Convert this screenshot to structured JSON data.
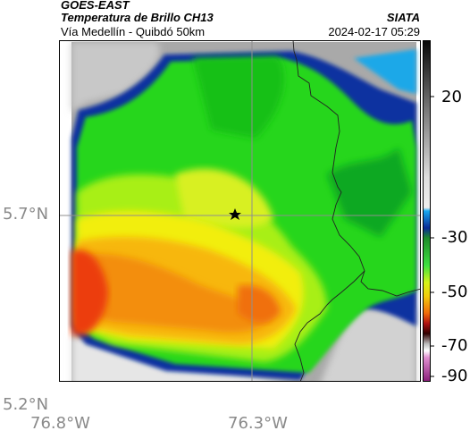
{
  "header": {
    "satellite": "GOES-EAST",
    "product": "Temperatura de Brillo CH13",
    "region": "Vía Medellín - Quibdó 50km",
    "org": "SIATA",
    "timestamp": "2024-02-17 05:29"
  },
  "axes": {
    "lat_labels": [
      "5.7°N",
      "5.2°N"
    ],
    "lon_labels": [
      "76.8°W",
      "76.3°W"
    ]
  },
  "colorbar": {
    "ticks": [
      "20",
      "-30",
      "-50",
      "-70",
      "-90"
    ],
    "values": [
      20,
      -30,
      -50,
      -70,
      -90
    ]
  },
  "map": {
    "marker": "star",
    "gridline_color": "#8f8f8f",
    "border_color": "#222222"
  }
}
